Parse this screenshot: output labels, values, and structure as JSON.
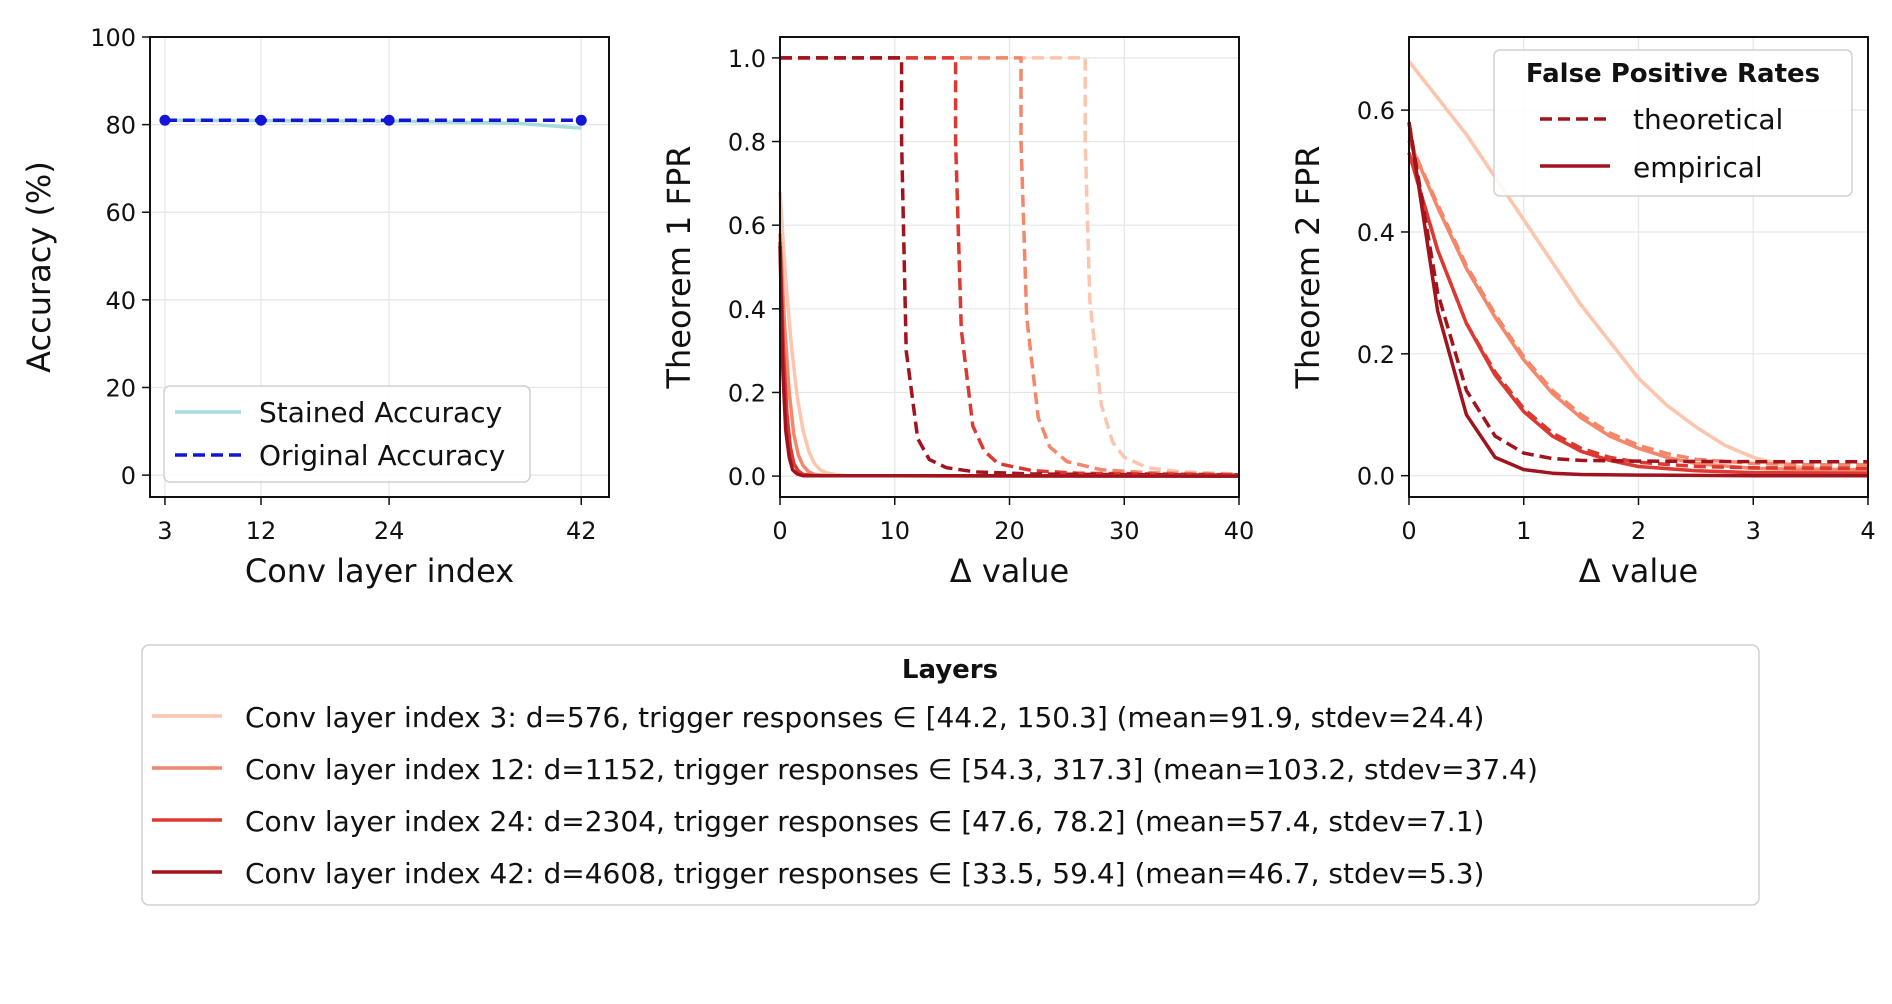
{
  "chart_data": [
    {
      "type": "line",
      "xlabel": "Conv layer index",
      "ylabel": "Accuracy (%)",
      "x_ticks": [
        3,
        12,
        24,
        42
      ],
      "y_ticks": [
        0,
        20,
        40,
        60,
        80,
        100
      ],
      "ylim": [
        -5,
        100
      ],
      "grid": true,
      "legend_position": "lower-left",
      "series": [
        {
          "name": "Stained Accuracy",
          "color": "#a6dbe0",
          "style": "solid",
          "x": [
            3,
            12,
            24,
            36,
            42
          ],
          "values": [
            81.0,
            80.9,
            80.8,
            80.3,
            79.2
          ]
        },
        {
          "name": "Original Accuracy",
          "color": "#1515d6",
          "style": "dashed",
          "markers": true,
          "x": [
            3,
            12,
            24,
            42
          ],
          "values": [
            81.0,
            81.0,
            81.0,
            81.0
          ]
        }
      ]
    },
    {
      "type": "line",
      "xlabel": "Δ value",
      "ylabel": "Theorem 1 FPR",
      "x_ticks": [
        0,
        10,
        20,
        30,
        40
      ],
      "y_ticks": [
        "0.0",
        "0.2",
        "0.4",
        "0.6",
        "0.8",
        "1.0"
      ],
      "xlim": [
        0,
        40
      ],
      "ylim": [
        -0.05,
        1.05
      ],
      "grid": true,
      "series": [
        {
          "layer": 3,
          "style": "dashed",
          "color": "#fcc5ad",
          "x": [
            0,
            26.6,
            26.6,
            27,
            28,
            29,
            30,
            32,
            35,
            40
          ],
          "values": [
            1.0,
            1.0,
            0.8,
            0.42,
            0.17,
            0.08,
            0.045,
            0.02,
            0.01,
            0.005
          ]
        },
        {
          "layer": 12,
          "style": "dashed",
          "color": "#f4866a",
          "x": [
            0,
            21,
            21,
            21.5,
            22.5,
            23.5,
            25,
            28,
            32,
            40
          ],
          "values": [
            1.0,
            1.0,
            0.8,
            0.38,
            0.14,
            0.07,
            0.035,
            0.015,
            0.008,
            0.004
          ]
        },
        {
          "layer": 24,
          "style": "dashed",
          "color": "#db3931",
          "x": [
            0,
            15.3,
            15.3,
            15.8,
            16.8,
            17.8,
            19,
            22,
            26,
            40
          ],
          "values": [
            1.0,
            1.0,
            0.8,
            0.35,
            0.12,
            0.06,
            0.03,
            0.013,
            0.007,
            0.003
          ]
        },
        {
          "layer": 42,
          "style": "dashed",
          "color": "#a1141d",
          "x": [
            0,
            10.6,
            10.6,
            11,
            12,
            13,
            14.5,
            17,
            22,
            40
          ],
          "values": [
            1.0,
            1.0,
            0.8,
            0.3,
            0.09,
            0.04,
            0.02,
            0.01,
            0.005,
            0.002
          ]
        },
        {
          "layer": 3,
          "style": "solid",
          "color": "#fcc5ad",
          "x": [
            0,
            0.5,
            1,
            1.5,
            2,
            2.5,
            3,
            3.5,
            4,
            5,
            6,
            40
          ],
          "values": [
            0.68,
            0.47,
            0.31,
            0.19,
            0.11,
            0.06,
            0.03,
            0.015,
            0.008,
            0.003,
            0.001,
            0.0
          ]
        },
        {
          "layer": 12,
          "style": "solid",
          "color": "#f4866a",
          "x": [
            0,
            0.4,
            0.8,
            1.2,
            1.6,
            2,
            2.5,
            3,
            4,
            40
          ],
          "values": [
            0.58,
            0.36,
            0.2,
            0.1,
            0.05,
            0.025,
            0.01,
            0.004,
            0.001,
            0.0
          ]
        },
        {
          "layer": 24,
          "style": "solid",
          "color": "#db3931",
          "x": [
            0,
            0.3,
            0.6,
            0.9,
            1.2,
            1.6,
            2,
            3,
            40
          ],
          "values": [
            0.56,
            0.3,
            0.15,
            0.07,
            0.03,
            0.012,
            0.004,
            0.001,
            0.0
          ]
        },
        {
          "layer": 42,
          "style": "solid",
          "color": "#a1141d",
          "x": [
            0,
            0.25,
            0.5,
            0.8,
            1.1,
            1.5,
            2,
            40
          ],
          "values": [
            0.55,
            0.25,
            0.11,
            0.045,
            0.015,
            0.005,
            0.001,
            0.0
          ]
        }
      ]
    },
    {
      "type": "line",
      "xlabel": "Δ value",
      "ylabel": "Theorem 2 FPR",
      "x_ticks": [
        0,
        1,
        2,
        3,
        4
      ],
      "y_ticks": [
        "0.0",
        "0.2",
        "0.4",
        "0.6"
      ],
      "xlim": [
        0,
        4
      ],
      "ylim": [
        -0.035,
        0.72
      ],
      "grid": true,
      "legend_position": "upper-right",
      "series": [
        {
          "layer": 3,
          "style": "solid",
          "color": "#fcc5ad",
          "x": [
            0,
            0.25,
            0.5,
            0.75,
            1,
            1.25,
            1.5,
            1.75,
            2,
            2.25,
            2.5,
            2.75,
            3,
            3.25,
            3.5,
            4
          ],
          "values": [
            0.68,
            0.62,
            0.56,
            0.49,
            0.42,
            0.35,
            0.28,
            0.22,
            0.16,
            0.115,
            0.08,
            0.05,
            0.03,
            0.018,
            0.012,
            0.008
          ]
        },
        {
          "layer": 3,
          "style": "dashed",
          "color": "#fcc5ad",
          "x": [
            0,
            0.25,
            0.5,
            0.75,
            1,
            1.25,
            1.5,
            1.75,
            2,
            2.25,
            2.5,
            2.75,
            3,
            3.25,
            3.5,
            4
          ],
          "values": [
            0.68,
            0.62,
            0.56,
            0.49,
            0.42,
            0.35,
            0.28,
            0.22,
            0.16,
            0.115,
            0.08,
            0.05,
            0.03,
            0.018,
            0.012,
            0.008
          ]
        },
        {
          "layer": 12,
          "style": "solid",
          "color": "#f4866a",
          "x": [
            0,
            0.25,
            0.5,
            0.75,
            1,
            1.25,
            1.5,
            1.75,
            2,
            2.25,
            2.5,
            3,
            3.5,
            4
          ],
          "values": [
            0.55,
            0.44,
            0.34,
            0.26,
            0.19,
            0.135,
            0.095,
            0.065,
            0.045,
            0.03,
            0.02,
            0.012,
            0.01,
            0.01
          ]
        },
        {
          "layer": 12,
          "style": "dashed",
          "color": "#f4866a",
          "x": [
            0,
            0.25,
            0.5,
            0.75,
            1,
            1.25,
            1.5,
            1.75,
            2,
            2.25,
            2.5,
            3,
            3.5,
            4
          ],
          "values": [
            0.55,
            0.445,
            0.345,
            0.265,
            0.195,
            0.14,
            0.1,
            0.07,
            0.05,
            0.036,
            0.027,
            0.02,
            0.018,
            0.018
          ]
        },
        {
          "layer": 24,
          "style": "solid",
          "color": "#db3931",
          "x": [
            0,
            0.25,
            0.5,
            0.75,
            1,
            1.25,
            1.5,
            1.75,
            2,
            2.5,
            3,
            4
          ],
          "values": [
            0.53,
            0.37,
            0.25,
            0.165,
            0.105,
            0.065,
            0.04,
            0.025,
            0.015,
            0.008,
            0.005,
            0.004
          ]
        },
        {
          "layer": 24,
          "style": "dashed",
          "color": "#db3931",
          "x": [
            0,
            0.25,
            0.5,
            0.75,
            1,
            1.25,
            1.5,
            1.75,
            2,
            2.5,
            3,
            4
          ],
          "values": [
            0.53,
            0.37,
            0.25,
            0.17,
            0.11,
            0.07,
            0.045,
            0.03,
            0.022,
            0.015,
            0.013,
            0.012
          ]
        },
        {
          "layer": 42,
          "style": "solid",
          "color": "#a1141d",
          "x": [
            0,
            0.25,
            0.5,
            0.75,
            1,
            1.25,
            1.5,
            2,
            3,
            4
          ],
          "values": [
            0.58,
            0.27,
            0.1,
            0.03,
            0.01,
            0.004,
            0.002,
            0.001,
            0.0,
            0.0
          ]
        },
        {
          "layer": 42,
          "style": "dashed",
          "color": "#a1141d",
          "x": [
            0,
            0.25,
            0.5,
            0.75,
            1,
            1.25,
            1.5,
            2,
            3,
            4
          ],
          "values": [
            0.58,
            0.3,
            0.14,
            0.065,
            0.037,
            0.028,
            0.025,
            0.024,
            0.023,
            0.023
          ]
        }
      ]
    }
  ],
  "fpr_legend": {
    "title": "False Positive Rates",
    "theoretical": "theoretical",
    "empirical": "empirical",
    "color": "#a1141d"
  },
  "layers_legend": {
    "title": "Layers",
    "entries": [
      {
        "label": "Conv layer index 3: d=576, trigger responses ∈ [44.2, 150.3] (mean=91.9, stdev=24.4)",
        "color": "#fcc5ad"
      },
      {
        "label": "Conv layer index 12: d=1152, trigger responses ∈ [54.3, 317.3] (mean=103.2, stdev=37.4)",
        "color": "#f4866a"
      },
      {
        "label": "Conv layer index 24: d=2304, trigger responses ∈ [47.6, 78.2] (mean=57.4, stdev=7.1)",
        "color": "#db3931"
      },
      {
        "label": "Conv layer index 42: d=4608, trigger responses ∈ [33.5, 59.4] (mean=46.7, stdev=5.3)",
        "color": "#a1141d"
      }
    ]
  }
}
